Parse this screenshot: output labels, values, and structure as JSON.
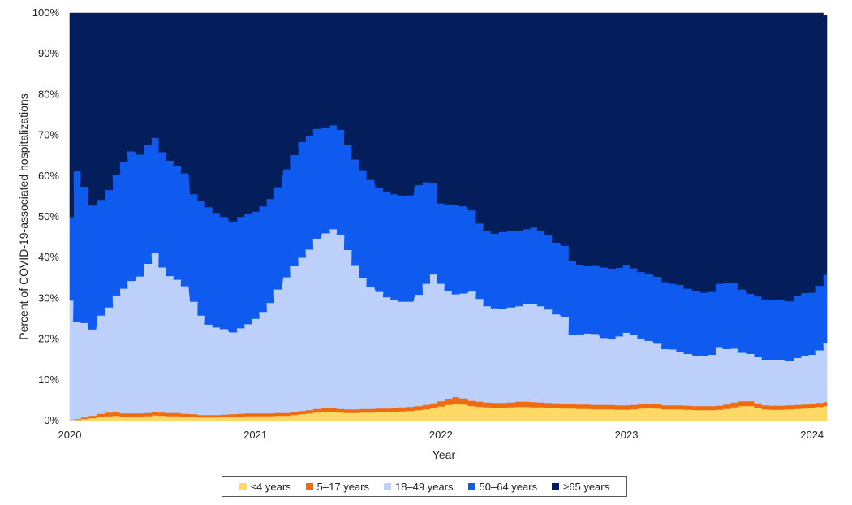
{
  "chart_data": {
    "type": "area",
    "stacked": true,
    "normalized_percent": true,
    "ylabel": "Percent of COVID-19-associated hospitalizations",
    "xlabel": "Year",
    "ylim": [
      0,
      100
    ],
    "xlim": [
      2020.0,
      2024.08
    ],
    "y_ticks": [
      "0%",
      "10%",
      "20%",
      "30%",
      "40%",
      "50%",
      "60%",
      "70%",
      "80%",
      "90%",
      "100%"
    ],
    "y_tick_values": [
      0,
      10,
      20,
      30,
      40,
      50,
      60,
      70,
      80,
      90,
      100
    ],
    "x_ticks": [
      "2020",
      "2021",
      "2022",
      "2023",
      "2024"
    ],
    "x_tick_values": [
      2020,
      2021,
      2022,
      2023,
      2024
    ],
    "grid": false,
    "legend_position": "bottom",
    "x": [
      2020.0,
      2020.04,
      2020.08,
      2020.12,
      2020.17,
      2020.21,
      2020.25,
      2020.29,
      2020.33,
      2020.38,
      2020.42,
      2020.46,
      2020.5,
      2020.54,
      2020.58,
      2020.62,
      2020.67,
      2020.71,
      2020.75,
      2020.79,
      2020.83,
      2020.88,
      2020.92,
      2020.96,
      2021.0,
      2021.04,
      2021.08,
      2021.12,
      2021.17,
      2021.21,
      2021.25,
      2021.29,
      2021.33,
      2021.38,
      2021.42,
      2021.46,
      2021.5,
      2021.54,
      2021.58,
      2021.62,
      2021.67,
      2021.71,
      2021.75,
      2021.79,
      2021.83,
      2021.88,
      2021.92,
      2021.96,
      2022.0,
      2022.04,
      2022.08,
      2022.12,
      2022.17,
      2022.21,
      2022.25,
      2022.29,
      2022.33,
      2022.38,
      2022.42,
      2022.46,
      2022.5,
      2022.54,
      2022.58,
      2022.62,
      2022.67,
      2022.71,
      2022.75,
      2022.79,
      2022.83,
      2022.88,
      2022.92,
      2022.96,
      2023.0,
      2023.04,
      2023.08,
      2023.12,
      2023.17,
      2023.21,
      2023.25,
      2023.29,
      2023.33,
      2023.38,
      2023.42,
      2023.46,
      2023.5,
      2023.54,
      2023.58,
      2023.62,
      2023.67,
      2023.71,
      2023.75,
      2023.79,
      2023.83,
      2023.88,
      2023.92,
      2023.96,
      2024.0,
      2024.04,
      2024.08
    ],
    "series": [
      {
        "name": "≤4 years",
        "color": "#FFD966",
        "values": [
          0.0,
          0.2,
          0.4,
          0.6,
          0.9,
          1.1,
          1.2,
          1.0,
          1.0,
          1.0,
          1.1,
          1.3,
          1.2,
          1.1,
          1.1,
          1.0,
          0.9,
          0.8,
          0.8,
          0.8,
          0.9,
          1.0,
          1.0,
          1.1,
          1.1,
          1.1,
          1.1,
          1.2,
          1.2,
          1.4,
          1.6,
          1.8,
          2.0,
          2.2,
          2.2,
          2.0,
          1.9,
          1.9,
          2.0,
          2.0,
          2.1,
          2.1,
          2.2,
          2.3,
          2.4,
          2.6,
          2.8,
          3.1,
          3.5,
          3.9,
          4.2,
          4.0,
          3.6,
          3.4,
          3.3,
          3.2,
          3.2,
          3.3,
          3.4,
          3.4,
          3.3,
          3.3,
          3.2,
          3.1,
          3.0,
          3.0,
          2.9,
          2.9,
          2.8,
          2.8,
          2.8,
          2.7,
          2.7,
          2.8,
          3.0,
          3.1,
          3.0,
          2.8,
          2.8,
          2.8,
          2.7,
          2.6,
          2.6,
          2.6,
          2.7,
          2.9,
          3.3,
          3.6,
          3.6,
          3.2,
          2.8,
          2.7,
          2.7,
          2.8,
          2.9,
          3.0,
          3.2,
          3.4,
          3.6
        ]
      },
      {
        "name": "5–17 years",
        "color": "#F06A10",
        "values": [
          0.0,
          0.2,
          0.4,
          0.6,
          0.8,
          0.9,
          0.9,
          0.8,
          0.8,
          0.8,
          0.8,
          0.9,
          0.8,
          0.8,
          0.8,
          0.7,
          0.7,
          0.6,
          0.6,
          0.6,
          0.6,
          0.6,
          0.7,
          0.7,
          0.7,
          0.7,
          0.7,
          0.7,
          0.7,
          0.8,
          0.8,
          0.8,
          0.9,
          0.9,
          0.9,
          0.9,
          0.9,
          0.9,
          0.9,
          0.9,
          0.9,
          0.9,
          1.0,
          1.0,
          1.0,
          1.0,
          1.1,
          1.2,
          1.3,
          1.4,
          1.6,
          1.5,
          1.3,
          1.3,
          1.2,
          1.2,
          1.2,
          1.2,
          1.3,
          1.3,
          1.3,
          1.2,
          1.2,
          1.2,
          1.2,
          1.1,
          1.1,
          1.1,
          1.1,
          1.1,
          1.1,
          1.1,
          1.1,
          1.1,
          1.1,
          1.1,
          1.1,
          1.0,
          1.0,
          1.0,
          1.0,
          1.0,
          1.0,
          1.0,
          1.0,
          1.1,
          1.2,
          1.2,
          1.2,
          1.1,
          1.0,
          1.0,
          1.0,
          1.0,
          1.0,
          1.0,
          1.0,
          1.0,
          1.0
        ]
      },
      {
        "name": "18–49 years",
        "color": "#BDD0FA",
        "values": [
          29.5,
          23.8,
          23.2,
          21.2,
          24.1,
          25.8,
          28.6,
          30.6,
          32.5,
          33.6,
          36.6,
          39.0,
          35.6,
          33.6,
          32.7,
          31.3,
          27.6,
          24.4,
          22.2,
          21.5,
          21.0,
          20.1,
          21.0,
          21.9,
          23.2,
          24.9,
          27.1,
          30.3,
          33.3,
          35.7,
          37.6,
          39.4,
          41.8,
          42.9,
          43.9,
          42.8,
          39.1,
          35.2,
          32.1,
          30.0,
          28.6,
          27.3,
          26.5,
          25.9,
          25.8,
          27.3,
          29.7,
          31.6,
          28.8,
          26.5,
          25.2,
          25.7,
          26.8,
          25.2,
          23.6,
          23.2,
          23.1,
          23.3,
          23.4,
          23.9,
          24.0,
          23.6,
          22.9,
          21.8,
          21.3,
          17.0,
          17.2,
          17.4,
          17.4,
          16.4,
          16.2,
          16.9,
          17.8,
          17.1,
          16.1,
          15.4,
          14.8,
          13.8,
          13.7,
          13.2,
          12.7,
          12.4,
          12.2,
          12.6,
          14.2,
          13.6,
          13.2,
          11.9,
          11.6,
          11.3,
          11.0,
          11.2,
          11.1,
          10.8,
          11.5,
          11.9,
          12.0,
          12.9,
          14.5
        ]
      },
      {
        "name": "50–64 years",
        "color": "#0F5BF0",
        "values": [
          20.5,
          37.0,
          33.4,
          30.4,
          28.4,
          28.8,
          29.7,
          31.0,
          31.8,
          29.9,
          29.1,
          28.2,
          28.3,
          28.3,
          28.0,
          27.7,
          26.4,
          28.1,
          28.8,
          28.1,
          27.5,
          27.2,
          27.3,
          27.0,
          26.3,
          25.9,
          25.5,
          25.1,
          26.5,
          27.3,
          28.4,
          28.0,
          26.9,
          25.8,
          25.5,
          25.7,
          25.9,
          26.1,
          26.3,
          26.2,
          25.6,
          25.9,
          25.9,
          26.0,
          26.1,
          26.9,
          24.9,
          22.4,
          19.7,
          21.3,
          21.9,
          21.4,
          19.9,
          18.5,
          18.4,
          18.3,
          18.8,
          18.8,
          18.4,
          18.4,
          18.8,
          18.6,
          18.2,
          17.6,
          17.4,
          18.1,
          17.0,
          16.5,
          16.7,
          17.3,
          17.2,
          16.8,
          16.7,
          16.4,
          16.3,
          16.4,
          16.4,
          16.4,
          16.1,
          16.3,
          16.0,
          15.8,
          15.6,
          15.4,
          15.7,
          16.2,
          16.1,
          15.5,
          14.7,
          14.9,
          14.9,
          14.8,
          14.9,
          14.7,
          15.2,
          15.4,
          15.2,
          15.8,
          16.7
        ]
      },
      {
        "name": "≥65 years",
        "color": "#041E5B",
        "values": [
          50.0,
          38.8,
          42.6,
          47.2,
          45.8,
          43.4,
          39.6,
          36.6,
          33.9,
          34.7,
          32.4,
          30.6,
          34.1,
          36.2,
          37.4,
          39.3,
          44.4,
          46.1,
          47.6,
          49.0,
          50.0,
          51.1,
          50.0,
          49.3,
          48.7,
          47.4,
          45.6,
          42.7,
          38.3,
          34.8,
          31.6,
          30.0,
          28.4,
          28.2,
          27.5,
          28.6,
          32.2,
          35.9,
          38.7,
          40.9,
          42.8,
          43.8,
          44.4,
          44.8,
          44.7,
          42.2,
          41.5,
          41.7,
          46.7,
          46.9,
          47.1,
          47.4,
          48.4,
          51.6,
          53.5,
          54.1,
          53.7,
          53.4,
          53.5,
          53.0,
          52.6,
          53.3,
          54.5,
          56.3,
          57.1,
          60.8,
          61.8,
          62.1,
          62.0,
          62.4,
          62.7,
          62.5,
          61.7,
          62.6,
          63.5,
          64.0,
          64.7,
          66.0,
          66.4,
          66.7,
          67.6,
          68.2,
          68.6,
          68.4,
          66.4,
          66.2,
          66.2,
          67.8,
          68.9,
          69.5,
          70.3,
          70.3,
          70.3,
          70.7,
          69.4,
          68.7,
          68.6,
          66.9,
          63.6
        ]
      }
    ]
  }
}
